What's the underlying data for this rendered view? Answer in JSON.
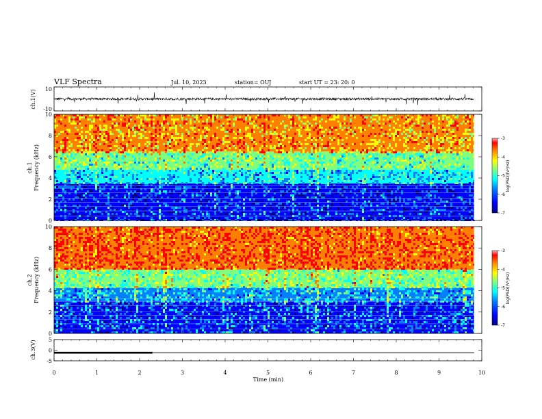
{
  "header": {
    "title": "VLF Spectra",
    "date": "Jul. 10, 2023",
    "station": "station= OUJ",
    "start_ut": "start UT =  23: 20: 0"
  },
  "chart_data": [
    {
      "type": "line",
      "name": "ch1_waveform",
      "ylabel": "ch.1(V)",
      "yticklabels": [
        "10",
        "-10"
      ],
      "ylim": [
        -10,
        10
      ],
      "xlim": [
        0,
        10
      ],
      "x_end": 9.82,
      "approx_baseline_v": 0,
      "approx_noise_v": 2
    },
    {
      "type": "heatmap",
      "name": "ch1_spectrogram",
      "ylabel_line1": "ch.1",
      "ylabel_line2": "Frequency (kHz)",
      "yticklabels": [
        "0",
        "2",
        "4",
        "6",
        "8",
        "10"
      ],
      "ylim": [
        0,
        10
      ],
      "xlim": [
        0,
        10
      ],
      "x_end": 9.82,
      "colorbar": {
        "label": "log(PSD)(V²/Hz)",
        "ticks": [
          "-3",
          "-4",
          "-5",
          "-6",
          "-7"
        ],
        "range": [
          -7,
          -3
        ]
      },
      "bands_khz": [
        {
          "from": 0,
          "to": 3.5,
          "level": -6.3
        },
        {
          "from": 3.5,
          "to": 4.8,
          "level": -5.5
        },
        {
          "from": 4.8,
          "to": 6.5,
          "level": -4.9
        },
        {
          "from": 6.5,
          "to": 10,
          "level": -3.8
        }
      ]
    },
    {
      "type": "heatmap",
      "name": "ch2_spectrogram",
      "ylabel_line1": "ch.2",
      "ylabel_line2": "Frequency (kHz)",
      "yticklabels": [
        "0",
        "2",
        "4",
        "6",
        "8",
        "10"
      ],
      "ylim": [
        0,
        10
      ],
      "xlim": [
        0,
        10
      ],
      "x_end": 9.82,
      "colorbar": {
        "label": "log(PSD)(V²/Hz)",
        "ticks": [
          "-3",
          "-4",
          "-5",
          "-6",
          "-7"
        ],
        "range": [
          -7,
          -3
        ]
      },
      "bands_khz": [
        {
          "from": 0,
          "to": 3.0,
          "level": -6.2
        },
        {
          "from": 3.0,
          "to": 4.3,
          "level": -5.6
        },
        {
          "from": 4.3,
          "to": 6.0,
          "level": -4.8
        },
        {
          "from": 6.0,
          "to": 10,
          "level": -3.3
        }
      ]
    },
    {
      "type": "line",
      "name": "ch3_waveform",
      "ylabel": "ch.3(V)",
      "yticklabels": [
        "5",
        "0",
        "-5"
      ],
      "ylim": [
        -5,
        5
      ],
      "xlim": [
        0,
        10
      ],
      "x_end": 9.82,
      "level_v": -1.2,
      "thick_until_min": 2.3
    }
  ],
  "xaxis": {
    "label": "Time (min)",
    "ticklabels": [
      "0",
      "1",
      "2",
      "3",
      "4",
      "5",
      "6",
      "7",
      "8",
      "9",
      "10"
    ]
  },
  "colors": {
    "colormap": [
      "#00007f",
      "#0000ff",
      "#007fff",
      "#00ffff",
      "#7fff7f",
      "#ffff00",
      "#ff7f00",
      "#ff0000"
    ],
    "waveform": "#000000"
  }
}
